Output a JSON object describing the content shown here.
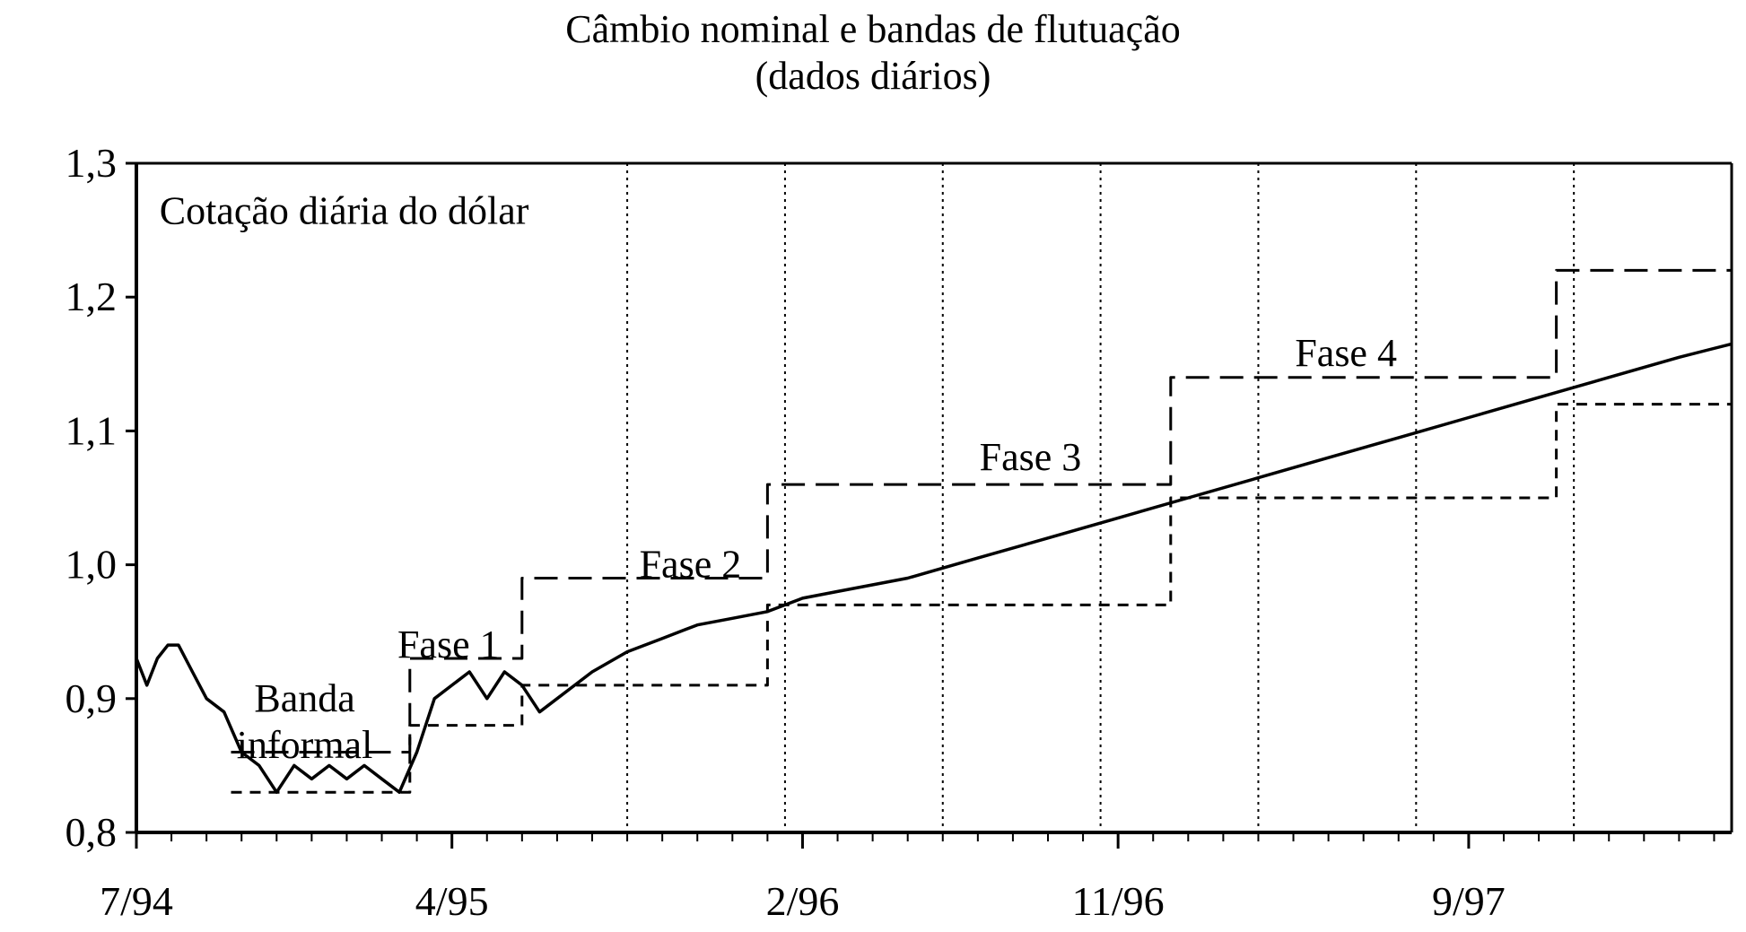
{
  "chart_data": {
    "type": "line",
    "title": "Câmbio nominal e bandas de flutuação",
    "subtitle": "(dados diários)",
    "xlabel": "",
    "ylabel": "",
    "ylim": [
      0.8,
      1.3
    ],
    "y_ticks": [
      "0,8",
      "0,9",
      "1,0",
      "1,1",
      "1,2",
      "1,3"
    ],
    "y_tick_values": [
      0.8,
      0.9,
      1.0,
      1.1,
      1.2,
      1.3
    ],
    "x_unit": "months since 7/94",
    "x_range": [
      0,
      45.5
    ],
    "x_tick_labels": [
      "7/94",
      "4/95",
      "2/96",
      "11/96",
      "9/97"
    ],
    "x_tick_label_positions": [
      0,
      9,
      19,
      28,
      38
    ],
    "vertical_reference_lines": [
      14,
      18.5,
      23,
      27.5,
      32,
      36.5,
      41
    ],
    "series": [
      {
        "style": "solid",
        "x": [
          0,
          0.3,
          0.6,
          0.9,
          1.2,
          1.6,
          2.0,
          2.5,
          3.0,
          3.5,
          4.0,
          4.5,
          5.0,
          5.5,
          6.0,
          6.5,
          7.0,
          7.5,
          8.0,
          8.5,
          9.0,
          9.5,
          10.0,
          10.5,
          11.0,
          11.5,
          12.0,
          12.5,
          13.0,
          14.0,
          15.0,
          16.0,
          17.0,
          18.0,
          19.0,
          20.0,
          22.0,
          24.0,
          26.0,
          28.0,
          30.0,
          32.0,
          34.0,
          36.0,
          38.0,
          40.0,
          42.0,
          44.0,
          45.5
        ],
        "values": [
          0.93,
          0.91,
          0.93,
          0.94,
          0.94,
          0.92,
          0.9,
          0.89,
          0.86,
          0.85,
          0.83,
          0.85,
          0.84,
          0.85,
          0.84,
          0.85,
          0.84,
          0.83,
          0.86,
          0.9,
          0.91,
          0.92,
          0.9,
          0.92,
          0.91,
          0.89,
          0.9,
          0.91,
          0.92,
          0.935,
          0.945,
          0.955,
          0.96,
          0.965,
          0.975,
          0.98,
          0.99,
          1.005,
          1.02,
          1.035,
          1.05,
          1.065,
          1.08,
          1.095,
          1.11,
          1.125,
          1.14,
          1.155,
          1.165
        ]
      },
      {
        "style": "long-dash",
        "role": "upper band",
        "x": [
          2.7,
          7.8,
          7.8,
          11.0,
          11.0,
          18.0,
          18.0,
          29.5,
          29.5,
          40.5,
          40.5,
          45.5
        ],
        "values": [
          0.86,
          0.86,
          0.93,
          0.93,
          0.99,
          0.99,
          1.06,
          1.06,
          1.14,
          1.14,
          1.22,
          1.22
        ]
      },
      {
        "style": "short-dash",
        "role": "lower band",
        "x": [
          2.7,
          7.8,
          7.8,
          11.0,
          11.0,
          18.0,
          18.0,
          29.5,
          29.5,
          40.5,
          40.5,
          45.5
        ],
        "values": [
          0.83,
          0.83,
          0.88,
          0.88,
          0.91,
          0.91,
          0.97,
          0.97,
          1.05,
          1.05,
          1.12,
          1.12
        ]
      }
    ],
    "annotations": [
      {
        "text": "Cotação diária do dólar",
        "x": 0.3,
        "y": 1.264
      },
      {
        "text": "Banda",
        "x": 4.8,
        "y": 0.9
      },
      {
        "text": "informal",
        "x": 4.8,
        "y": 0.865
      },
      {
        "text": "Fase 1",
        "x": 8.9,
        "y": 0.94
      },
      {
        "text": "Fase 2",
        "x": 15.8,
        "y": 1.0
      },
      {
        "text": "Fase 3",
        "x": 25.5,
        "y": 1.08
      },
      {
        "text": "Fase 4",
        "x": 34.5,
        "y": 1.158
      }
    ]
  }
}
